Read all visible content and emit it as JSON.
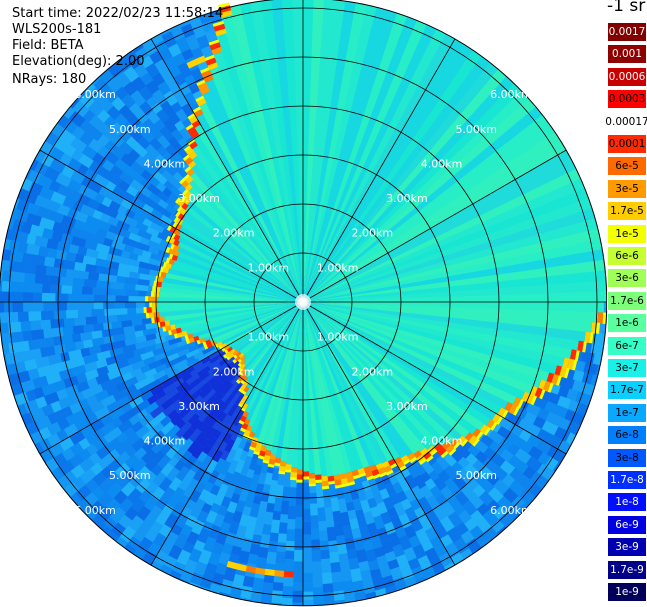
{
  "header": {
    "start_time": "Start time: 2022/02/23 11:58:14",
    "device": "WLS200s-181",
    "field": "Field: BETA",
    "elevation": "Elevation(deg): 2.00",
    "nrays": "NRays: 180"
  },
  "colorbar": {
    "unit": "-1 sr",
    "labels": [
      "0.0017",
      "0.001",
      "0.0006",
      "0.0003",
      "0.00017",
      "0.0001",
      "6e-5",
      "3e-5",
      "1.7e-5",
      "1e-5",
      "6e-6",
      "3e-6",
      "1.7e-6",
      "1e-6",
      "6e-7",
      "3e-7",
      "1.7e-7",
      "1e-7",
      "6e-8",
      "3e-8",
      "1.7e-8",
      "1e-8",
      "6e-9",
      "3e-9",
      "1.7e-9",
      "1e-9"
    ],
    "colors": [
      "#800000",
      "#8f0000",
      "#c80000",
      "#ff0000",
      "#ffffff",
      "#ff2a00",
      "#ff6a00",
      "#ff9b00",
      "#ffcd00",
      "#f4ff00",
      "#c6ff31",
      "#a0ff57",
      "#7dff7a",
      "#5affa0",
      "#35ffc6",
      "#19f0e8",
      "#0bd0ff",
      "#0aa8ff",
      "#0080ff",
      "#0058ff",
      "#0030ff",
      "#0010ff",
      "#0000e0",
      "#0000b0",
      "#000088",
      "#00005a"
    ]
  },
  "chart_data": {
    "type": "heatmap",
    "projection": "polar (PPI)",
    "rings_km": [
      1,
      2,
      3,
      4,
      5,
      6
    ],
    "ring_labels": [
      "1.00km",
      "2.00km",
      "3.00km",
      "4.00km",
      "5.00km",
      "6.00km"
    ],
    "max_range_km": 6.2,
    "spoke_step_deg": 30,
    "field": "BETA",
    "nrays": 180,
    "elevation_deg": 2.0,
    "palette": {
      "inner_clear": "#19e6d2",
      "outer_clear": "#1aa0f5",
      "deep_outer": "#0a6fe6",
      "dark_patch": "#1030d8",
      "cloud_edge": "#ff7a00",
      "cloud_hot": "#ff2a00",
      "cloud_yellow": "#ffd200"
    }
  }
}
